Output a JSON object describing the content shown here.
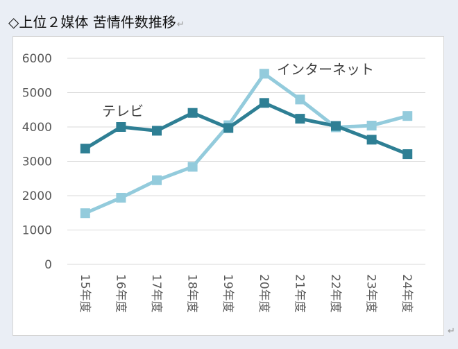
{
  "document": {
    "heading": "◇上位２媒体  苦情件数推移",
    "paragraph_mark": "↵"
  },
  "chart_data": {
    "type": "line",
    "categories": [
      "15年度",
      "16年度",
      "17年度",
      "18年度",
      "19年度",
      "20年度",
      "21年度",
      "22年度",
      "23年度",
      "24年度"
    ],
    "ylim": [
      0,
      6000
    ],
    "y_ticks": [
      0,
      1000,
      2000,
      3000,
      4000,
      5000,
      6000
    ],
    "grid": true,
    "legend": "none",
    "series": [
      {
        "name": "テレビ",
        "color": "#2e7f94",
        "values": [
          3370,
          4000,
          3890,
          4410,
          3970,
          4700,
          4240,
          4030,
          3630,
          3210
        ]
      },
      {
        "name": "インターネット",
        "color": "#93cbdc",
        "values": [
          1490,
          1940,
          2450,
          2840,
          4050,
          5550,
          4800,
          3990,
          4040,
          4320
        ]
      }
    ]
  }
}
